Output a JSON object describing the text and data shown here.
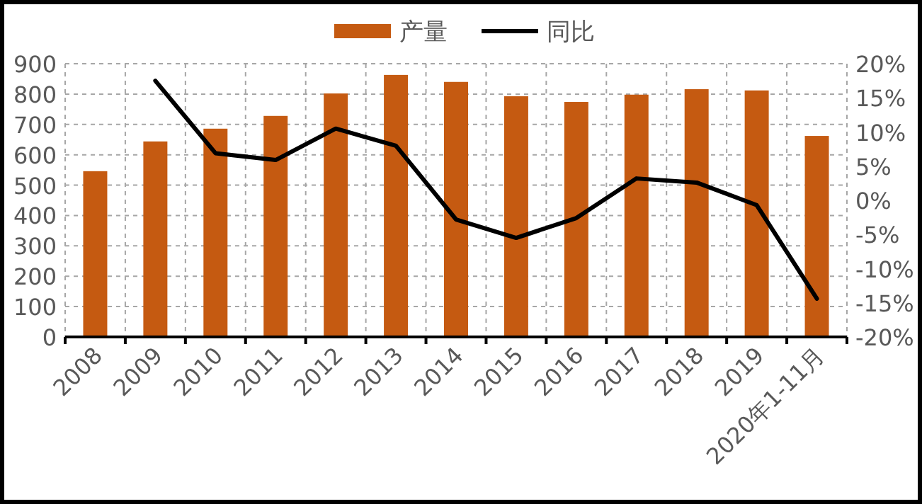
{
  "chart_data": {
    "type": "bar",
    "categories": [
      "2008",
      "2009",
      "2010",
      "2011",
      "2012",
      "2013",
      "2014",
      "2015",
      "2016",
      "2017",
      "2018",
      "2019",
      "2020年1-11月"
    ],
    "series": [
      {
        "name": "产量",
        "color": "#c55a11",
        "values": [
          546,
          644,
          686,
          728,
          802,
          863,
          840,
          793,
          774,
          798,
          816,
          812,
          662
        ]
      },
      {
        "name": "同比",
        "type": "line",
        "axis": "y2",
        "color": "#000000",
        "values": [
          null,
          17.5,
          6.9,
          5.9,
          10.5,
          8.0,
          -2.8,
          -5.5,
          -2.6,
          3.2,
          2.6,
          -0.7,
          -14.4
        ]
      }
    ],
    "ylim": [
      0,
      900
    ],
    "yticks": [
      0,
      100,
      200,
      300,
      400,
      500,
      600,
      700,
      800,
      900
    ],
    "y2lim": [
      -20,
      20
    ],
    "y2ticks": [
      {
        "value": -20,
        "label": "-20%"
      },
      {
        "value": -15,
        "label": "-15%"
      },
      {
        "value": -10,
        "label": "-10%"
      },
      {
        "value": -5,
        "label": "-5%"
      },
      {
        "value": 0,
        "label": "0%"
      },
      {
        "value": 5,
        "label": "5%"
      },
      {
        "value": 10,
        "label": "10%"
      },
      {
        "value": 15,
        "label": "15%"
      },
      {
        "value": 20,
        "label": "20%"
      }
    ],
    "grid": true,
    "legend": "top",
    "marker": "none",
    "line_style": "solid"
  }
}
